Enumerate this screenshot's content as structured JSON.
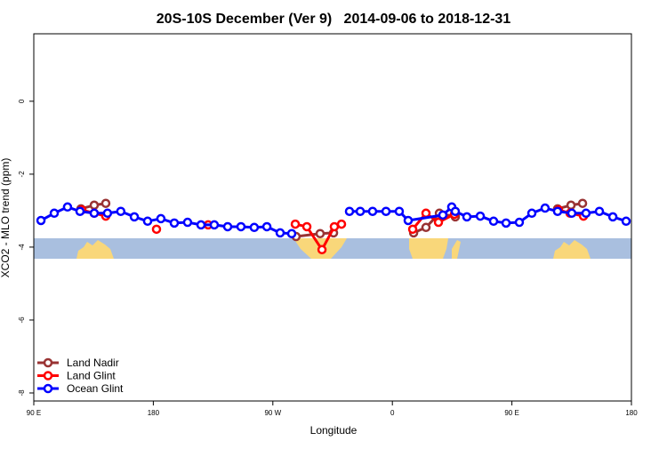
{
  "chart_data": {
    "type": "line",
    "title": "20S-10S December (Ver 9)   2014-09-06 to 2018-12-31",
    "xlabel": "Longitude",
    "ylabel": "XCO2 - MLO trend (ppm)",
    "xlim": [
      90,
      540
    ],
    "xticks": [
      {
        "value": 90,
        "label": "90 E"
      },
      {
        "value": 180,
        "label": "180"
      },
      {
        "value": 270,
        "label": "90 W"
      },
      {
        "value": 360,
        "label": "0"
      },
      {
        "value": 450,
        "label": "90 E"
      },
      {
        "value": 540,
        "label": "180"
      }
    ],
    "ylim": [
      -8.22,
      1.85
    ],
    "yticks": [
      0,
      -2,
      -4,
      -6,
      -8
    ],
    "grid": false,
    "legend": "bottom-left",
    "series": [
      {
        "name": "Land Nadir",
        "color": "#993333",
        "x": [
          125.5,
          135.5,
          144.2,
          null,
          287.5,
          305.6,
          315.7,
          null,
          376,
          385.3,
          395.4,
          407.4,
          null,
          484.4,
          494.5,
          503.2
        ],
        "values": [
          -2.95,
          -2.85,
          -2.8,
          null,
          -3.71,
          -3.63,
          -3.61,
          null,
          -3.61,
          -3.46,
          -3.07,
          -3.17,
          null,
          -2.95,
          -2.85,
          -2.8
        ]
      },
      {
        "name": "Land Glint",
        "color": "#ff0000",
        "x": [
          126.2,
          135.5,
          144.2,
          null,
          182.4,
          null,
          221.3,
          null,
          286.9,
          295.6,
          307,
          316.3,
          321.7,
          null,
          375.3,
          385.3,
          394.7,
          406.7,
          null,
          485.1,
          493.8,
          503.9
        ],
        "values": [
          -2.98,
          -3.07,
          -3.15,
          null,
          -3.51,
          null,
          -3.39,
          null,
          -3.37,
          -3.44,
          -4.07,
          -3.44,
          -3.37,
          null,
          -3.51,
          -3.07,
          -3.32,
          -3.1,
          null,
          -2.98,
          -3.07,
          -3.15
        ]
      },
      {
        "name": "Ocean Glint",
        "color": "#0000ff",
        "x": [
          95.4,
          105.4,
          115.4,
          124.8,
          135.5,
          145.5,
          155.5,
          165.7,
          175.7,
          185.7,
          195.8,
          205.8,
          215.9,
          225.9,
          236,
          246,
          256,
          265.5,
          275.5,
          284.2,
          null,
          327.7,
          335.8,
          345.1,
          355.2,
          365.2,
          371.9,
          398,
          404.7,
          407.4,
          416.1,
          426.2,
          436.2,
          445.6,
          455.6,
          465,
          475,
          484.4,
          495.1,
          505.8,
          515.9,
          526,
          536
        ],
        "values": [
          -3.27,
          -3.07,
          -2.9,
          -3.02,
          -3.07,
          -3.07,
          -3.02,
          -3.17,
          -3.29,
          -3.22,
          -3.34,
          -3.32,
          -3.39,
          -3.39,
          -3.44,
          -3.44,
          -3.46,
          -3.44,
          -3.61,
          -3.63,
          null,
          -3.02,
          -3.02,
          -3.02,
          -3.02,
          -3.02,
          -3.27,
          -3.12,
          -2.9,
          -3.02,
          -3.17,
          -3.15,
          -3.29,
          -3.34,
          -3.32,
          -3.07,
          -2.93,
          -3.02,
          -3.07,
          -3.07,
          -3.02,
          -3.17,
          -3.29
        ]
      }
    ]
  }
}
